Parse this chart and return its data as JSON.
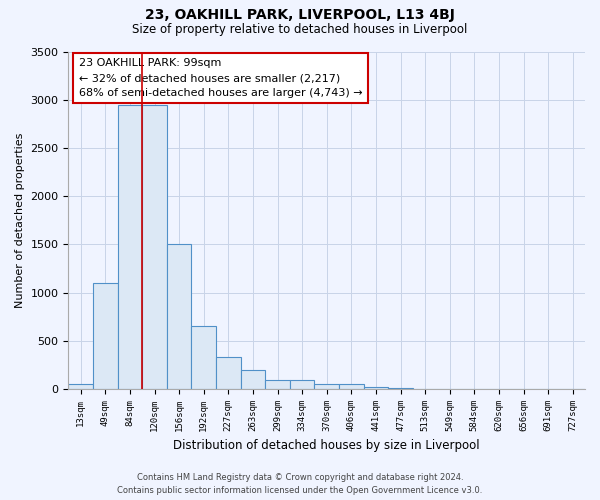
{
  "title": "23, OAKHILL PARK, LIVERPOOL, L13 4BJ",
  "subtitle": "Size of property relative to detached houses in Liverpool",
  "xlabel": "Distribution of detached houses by size in Liverpool",
  "ylabel": "Number of detached properties",
  "bar_labels": [
    "13sqm",
    "49sqm",
    "84sqm",
    "120sqm",
    "156sqm",
    "192sqm",
    "227sqm",
    "263sqm",
    "299sqm",
    "334sqm",
    "370sqm",
    "406sqm",
    "441sqm",
    "477sqm",
    "513sqm",
    "549sqm",
    "584sqm",
    "620sqm",
    "656sqm",
    "691sqm",
    "727sqm"
  ],
  "bar_values": [
    50,
    1100,
    2950,
    2950,
    1500,
    650,
    330,
    200,
    95,
    95,
    50,
    50,
    20,
    10,
    5,
    2,
    1,
    0,
    0,
    0,
    0
  ],
  "bar_fill_color": "#dce8f5",
  "bar_edge_color": "#5090c8",
  "property_line_color": "#cc0000",
  "property_line_index": 2,
  "annotation_text": "23 OAKHILL PARK: 99sqm\n← 32% of detached houses are smaller (2,217)\n68% of semi-detached houses are larger (4,743) →",
  "annotation_box_facecolor": "white",
  "annotation_box_edgecolor": "#cc0000",
  "ylim": [
    0,
    3500
  ],
  "yticks": [
    0,
    500,
    1000,
    1500,
    2000,
    2500,
    3000,
    3500
  ],
  "footnote_line1": "Contains HM Land Registry data © Crown copyright and database right 2024.",
  "footnote_line2": "Contains public sector information licensed under the Open Government Licence v3.0.",
  "bg_color": "#f0f4ff",
  "grid_color": "#c8d4e8",
  "title_fontsize": 10,
  "subtitle_fontsize": 8.5
}
